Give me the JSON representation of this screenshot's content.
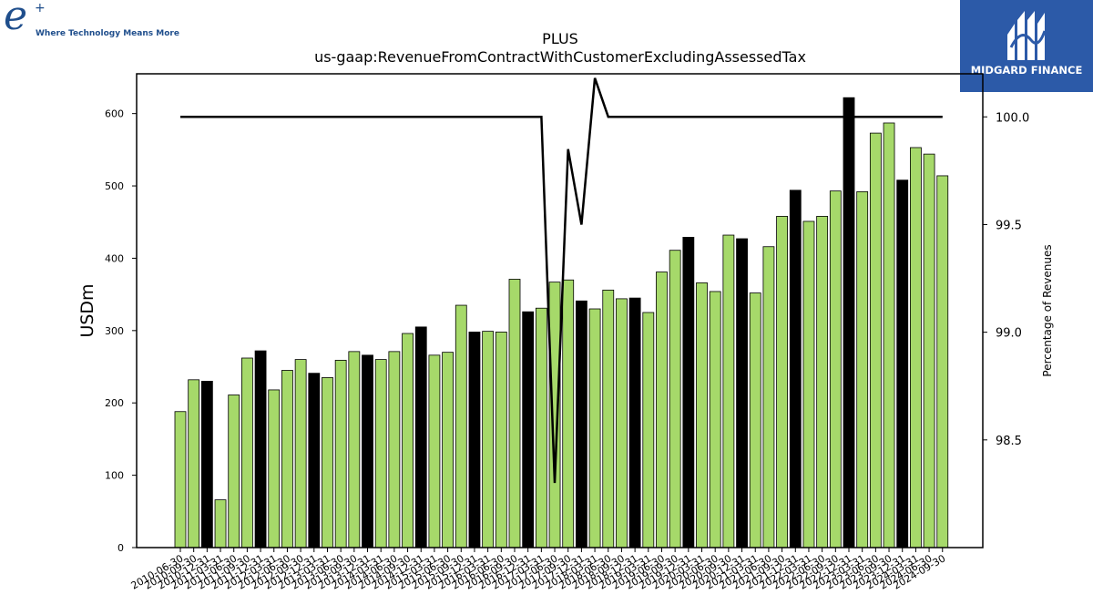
{
  "header": {
    "logo_tagline": "Where Technology Means More",
    "sponsor_name": "MIDGARD FINANCE"
  },
  "chart_data": {
    "type": "bar",
    "title": "PLUS",
    "subtitle": "us-gaap:RevenueFromContractWithCustomerExcludingAssessedTax",
    "ylabel": "USDm",
    "y2label": "Percentage of Revenues",
    "ylim": [
      0,
      655
    ],
    "y2lim": [
      98.0,
      100.2
    ],
    "yticks": [
      0,
      100,
      200,
      300,
      400,
      500,
      600
    ],
    "y2ticks": [
      98.5,
      99.0,
      99.5,
      100.0
    ],
    "categories": [
      "2010-06-30",
      "2010-09-30",
      "2010-12-31",
      "2011-03-31",
      "2011-06-30",
      "2011-09-30",
      "2011-12-31",
      "2012-03-31",
      "2012-06-30",
      "2012-09-30",
      "2012-12-31",
      "2013-03-31",
      "2013-06-30",
      "2013-09-30",
      "2013-12-31",
      "2014-03-31",
      "2014-06-30",
      "2014-09-30",
      "2014-12-31",
      "2015-03-31",
      "2015-06-30",
      "2015-09-30",
      "2015-12-31",
      "2016-03-31",
      "2016-06-30",
      "2016-09-30",
      "2016-12-31",
      "2017-03-31",
      "2017-06-30",
      "2017-09-30",
      "2017-12-31",
      "2018-03-31",
      "2018-06-30",
      "2018-09-30",
      "2018-12-31",
      "2019-03-31",
      "2019-06-30",
      "2019-09-30",
      "2019-12-31",
      "2020-03-31",
      "2020-06-30",
      "2020-09-30",
      "2020-12-31",
      "2021-03-31",
      "2021-06-30",
      "2021-09-30",
      "2021-12-31",
      "2022-03-31",
      "2022-06-30",
      "2022-09-30",
      "2022-12-31",
      "2023-03-31",
      "2023-06-30",
      "2023-09-30",
      "2023-12-31",
      "2024-03-31",
      "2024-06-30",
      "2024-09-30"
    ],
    "series": [
      {
        "values": [
          188,
          232,
          230,
          66,
          211,
          262,
          272,
          218,
          245,
          260,
          241,
          235,
          259,
          271,
          266,
          260,
          271,
          296,
          305,
          266,
          270,
          335,
          298,
          299,
          298,
          371,
          326,
          331,
          367,
          370,
          341,
          330,
          356,
          344,
          345,
          325,
          381,
          411,
          429,
          366,
          354,
          432,
          427,
          352,
          416,
          458,
          494,
          451,
          458,
          493,
          622,
          492,
          573,
          587,
          508,
          553,
          544,
          514
        ],
        "bar_colors": [
          "#a6d96a",
          "#a6d96a",
          "#000000",
          "#a6d96a",
          "#a6d96a",
          "#a6d96a",
          "#000000",
          "#a6d96a",
          "#a6d96a",
          "#a6d96a",
          "#000000",
          "#a6d96a",
          "#a6d96a",
          "#a6d96a",
          "#000000",
          "#a6d96a",
          "#a6d96a",
          "#a6d96a",
          "#000000",
          "#a6d96a",
          "#a6d96a",
          "#a6d96a",
          "#000000",
          "#a6d96a",
          "#a6d96a",
          "#a6d96a",
          "#000000",
          "#a6d96a",
          "#a6d96a",
          "#a6d96a",
          "#000000",
          "#a6d96a",
          "#a6d96a",
          "#a6d96a",
          "#000000",
          "#a6d96a",
          "#a6d96a",
          "#a6d96a",
          "#000000",
          "#a6d96a",
          "#a6d96a",
          "#a6d96a",
          "#000000",
          "#a6d96a",
          "#a6d96a",
          "#a6d96a",
          "#000000",
          "#a6d96a",
          "#a6d96a",
          "#a6d96a",
          "#000000",
          "#a6d96a",
          "#a6d96a",
          "#a6d96a",
          "#000000",
          "#a6d96a",
          "#a6d96a",
          "#a6d96a"
        ]
      },
      {
        "type": "line",
        "axis": "right",
        "color": "#000000",
        "values": [
          100,
          100,
          100,
          100,
          100,
          100,
          100,
          100,
          100,
          100,
          100,
          100,
          100,
          100,
          100,
          100,
          100,
          100,
          100,
          100,
          100,
          100,
          100,
          100,
          100,
          100,
          100,
          100,
          98.3,
          99.85,
          99.5,
          100.18,
          100,
          100,
          100,
          100,
          100,
          100,
          100,
          100,
          100,
          100,
          100,
          100,
          100,
          100,
          100,
          100,
          100,
          100,
          100,
          100,
          100,
          100,
          100,
          100,
          100,
          100
        ]
      }
    ],
    "colors": {
      "green": "#a6d96a",
      "black": "#000000"
    },
    "grid": false,
    "legend": "none"
  }
}
